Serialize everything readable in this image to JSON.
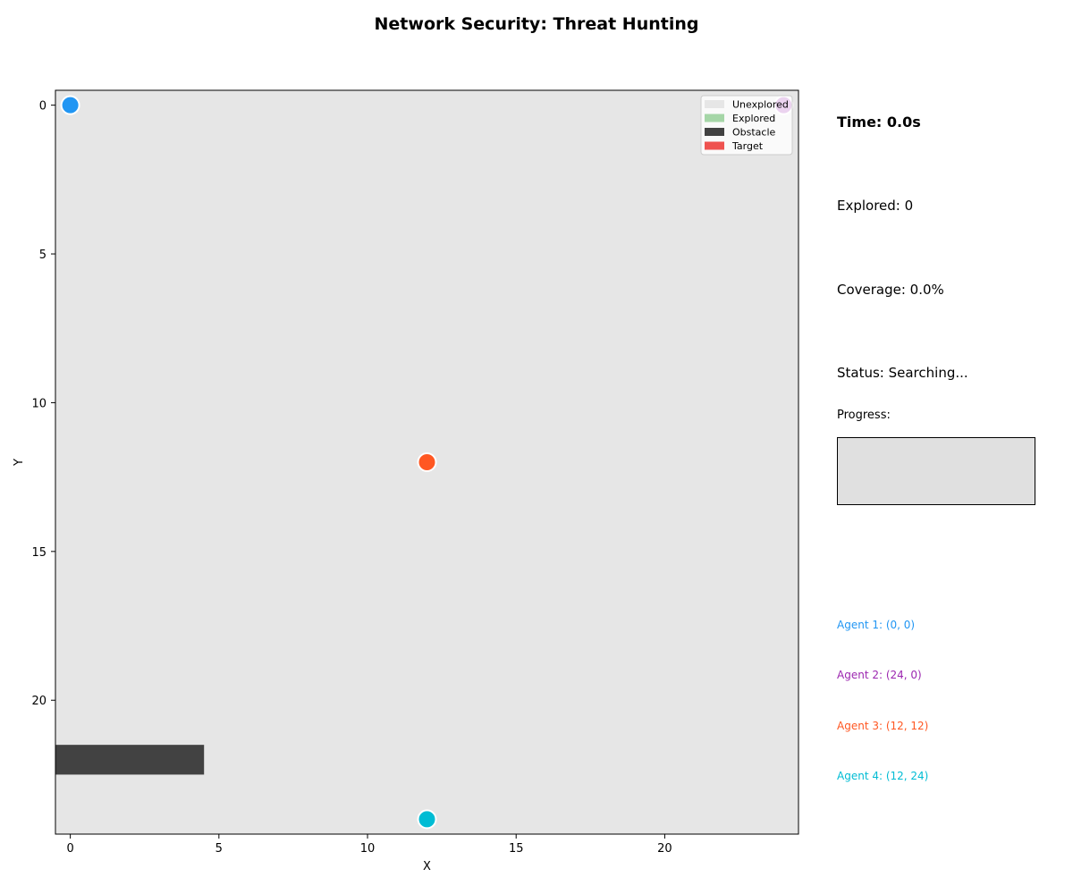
{
  "title": "Network Security: Threat Hunting",
  "colors": {
    "unexplored": "#e6e6e6",
    "explored": "#a5d6a7",
    "obstacle": "#424242",
    "target": "#ef5350",
    "agent1": "#2196f3",
    "agent2": "#9c27b0",
    "agent3": "#ff5722",
    "agent4": "#00bcd4"
  },
  "chart_data": {
    "type": "scatter",
    "title": "Network Security: Threat Hunting",
    "xlabel": "X",
    "ylabel": "Y",
    "xlim": [
      -0.5,
      24.5
    ],
    "ylim": [
      24.5,
      -0.5
    ],
    "y_inverted": true,
    "x_ticks": [
      0,
      5,
      10,
      15,
      20
    ],
    "y_ticks": [
      0,
      5,
      10,
      15,
      20
    ],
    "grid": false,
    "grid_size": [
      25,
      25
    ],
    "background": "unexplored",
    "obstacles": [
      {
        "x_from": 0,
        "x_to": 4,
        "y": 22
      }
    ],
    "explored_cells": [],
    "targets": [],
    "agents": [
      {
        "name": "Agent 1",
        "x": 0,
        "y": 0,
        "color": "#2196f3"
      },
      {
        "name": "Agent 2",
        "x": 24,
        "y": 0,
        "color": "#9c27b0"
      },
      {
        "name": "Agent 3",
        "x": 12,
        "y": 12,
        "color": "#ff5722"
      },
      {
        "name": "Agent 4",
        "x": 12,
        "y": 24,
        "color": "#00bcd4"
      }
    ],
    "legend": {
      "placement": "top-right",
      "entries": [
        {
          "label": "Unexplored",
          "color": "#e6e6e6"
        },
        {
          "label": "Explored",
          "color": "#a5d6a7"
        },
        {
          "label": "Obstacle",
          "color": "#424242"
        },
        {
          "label": "Target",
          "color": "#ef5350"
        }
      ]
    }
  },
  "panel": {
    "time": "Time: 0.0s",
    "explored": "Explored: 0",
    "coverage": "Coverage: 0.0%",
    "status": "Status: Searching...",
    "progress_label": "Progress:",
    "progress_value": 0.0,
    "agents": [
      {
        "label": "Agent 1: (0, 0)",
        "color": "#2196f3"
      },
      {
        "label": "Agent 2: (24, 0)",
        "color": "#9c27b0"
      },
      {
        "label": "Agent 3: (12, 12)",
        "color": "#ff5722"
      },
      {
        "label": "Agent 4: (12, 24)",
        "color": "#00bcd4"
      }
    ]
  }
}
